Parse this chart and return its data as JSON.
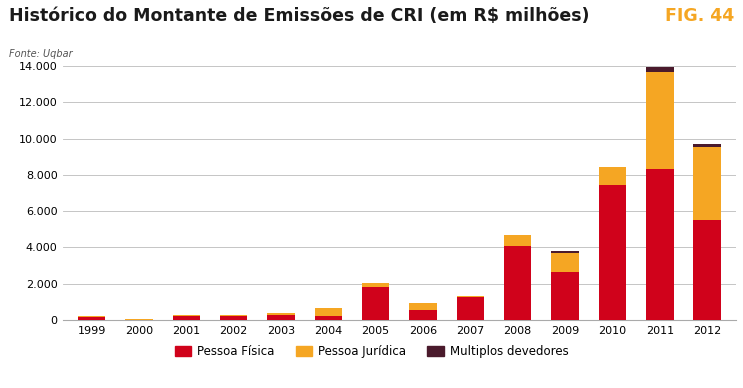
{
  "title": "Histórico do Montante de Emissões de CRI (em R$ milhões)",
  "fig_label": "FIG. 44",
  "fonte": "Fonte: Uqbar",
  "years": [
    "1999",
    "2000",
    "2001",
    "2002",
    "2003",
    "2004",
    "2005",
    "2006",
    "2007",
    "2008",
    "2009",
    "2010",
    "2011",
    "2012"
  ],
  "pessoa_fisica": [
    150,
    25,
    220,
    200,
    300,
    200,
    1850,
    550,
    1250,
    4100,
    2650,
    7450,
    8300,
    5500
  ],
  "pessoa_juridica": [
    80,
    10,
    80,
    60,
    80,
    480,
    180,
    400,
    100,
    600,
    1050,
    1000,
    5350,
    4050
  ],
  "multiplos_devedores": [
    0,
    0,
    0,
    0,
    0,
    0,
    0,
    0,
    0,
    0,
    80,
    0,
    300,
    150
  ],
  "color_pf": "#d0021b",
  "color_pj": "#f5a623",
  "color_md": "#4a1a2c",
  "ylim": [
    0,
    14000
  ],
  "yticks": [
    0,
    2000,
    4000,
    6000,
    8000,
    10000,
    12000,
    14000
  ],
  "legend_labels": [
    "Pessoa Física",
    "Pessoa Jurídica",
    "Multiplos devedores"
  ],
  "background": "#ffffff",
  "title_color": "#1a1a1a",
  "fig_label_color": "#f5a623",
  "header_line_color": "#e87722",
  "fonte_color": "#555555"
}
